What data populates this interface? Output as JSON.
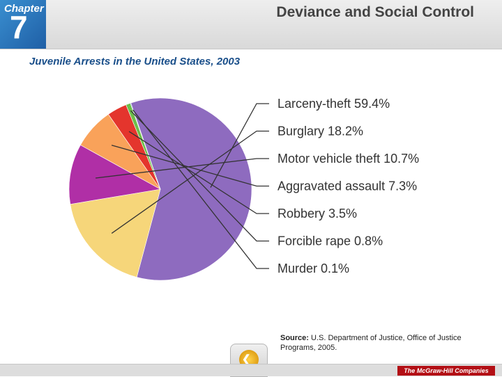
{
  "header": {
    "chapter_word": "Chapter",
    "chapter_number": "7",
    "section_title": "Deviance and Social Control"
  },
  "chart_data": {
    "type": "pie",
    "title": "Juvenile Arrests in the United States, 2003",
    "slices": [
      {
        "label": "Larceny-theft",
        "value": 59.4,
        "value_label": "59.4%",
        "color": "#8e6bbf"
      },
      {
        "label": "Burglary",
        "value": 18.2,
        "value_label": "18.2%",
        "color": "#f6d67a"
      },
      {
        "label": "Motor vehicle theft",
        "value": 10.7,
        "value_label": "10.7%",
        "color": "#b02fa6"
      },
      {
        "label": "Aggravated assault",
        "value": 7.3,
        "value_label": "7.3%",
        "color": "#f9a25a"
      },
      {
        "label": "Robbery",
        "value": 3.5,
        "value_label": "3.5%",
        "color": "#e4352d"
      },
      {
        "label": "Forcible rape",
        "value": 0.8,
        "value_label": "0.8%",
        "color": "#6cbf4a"
      },
      {
        "label": "Murder",
        "value": 0.1,
        "value_label": "0.1%",
        "color": "#2d7fb8"
      }
    ],
    "legend": "right"
  },
  "source": {
    "label": "Source:",
    "text": "U.S. Department of Justice, Office of Justice Programs, 2005."
  },
  "footer": {
    "back_icon": "back-arrow-icon",
    "back_glyph": "❮",
    "publisher": "The McGraw-Hill Companies"
  }
}
